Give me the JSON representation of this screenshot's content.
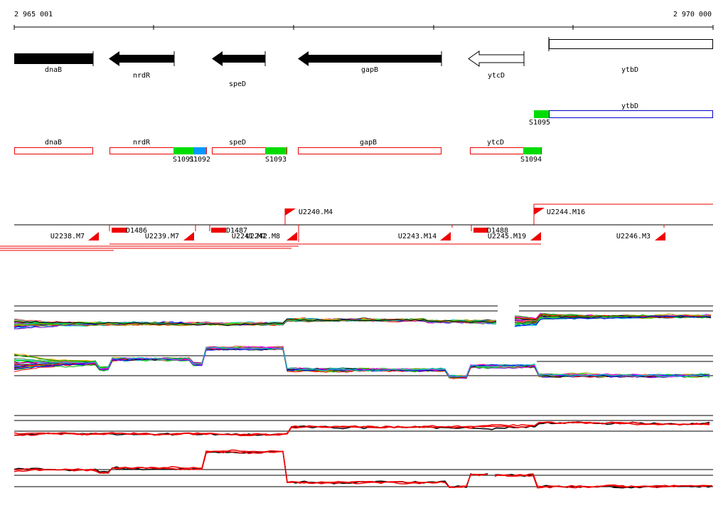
{
  "ruler": {
    "start": "2 965 001",
    "end": "2 970 000"
  },
  "genes": [
    "dnaB",
    "nrdR",
    "speD",
    "gapB",
    "ytcD",
    "ytbD"
  ],
  "track2": {
    "gene": "ytbD",
    "site": "S1095"
  },
  "track3": {
    "genes": [
      "dnaB",
      "nrdR",
      "speD",
      "gapB",
      "ytcD"
    ],
    "sites": [
      "S1091",
      "S1092",
      "S1093",
      "S1094"
    ]
  },
  "segments": [
    "U2238.M7",
    "U2239.M7",
    "U2240.M4",
    "U2241.M7",
    "U2242.M8",
    "U2243.M14",
    "U2244.M16",
    "U2245.M19",
    "U2246.M3"
  ],
  "deletions": [
    "D1486",
    "D1487",
    "D1488"
  ]
}
